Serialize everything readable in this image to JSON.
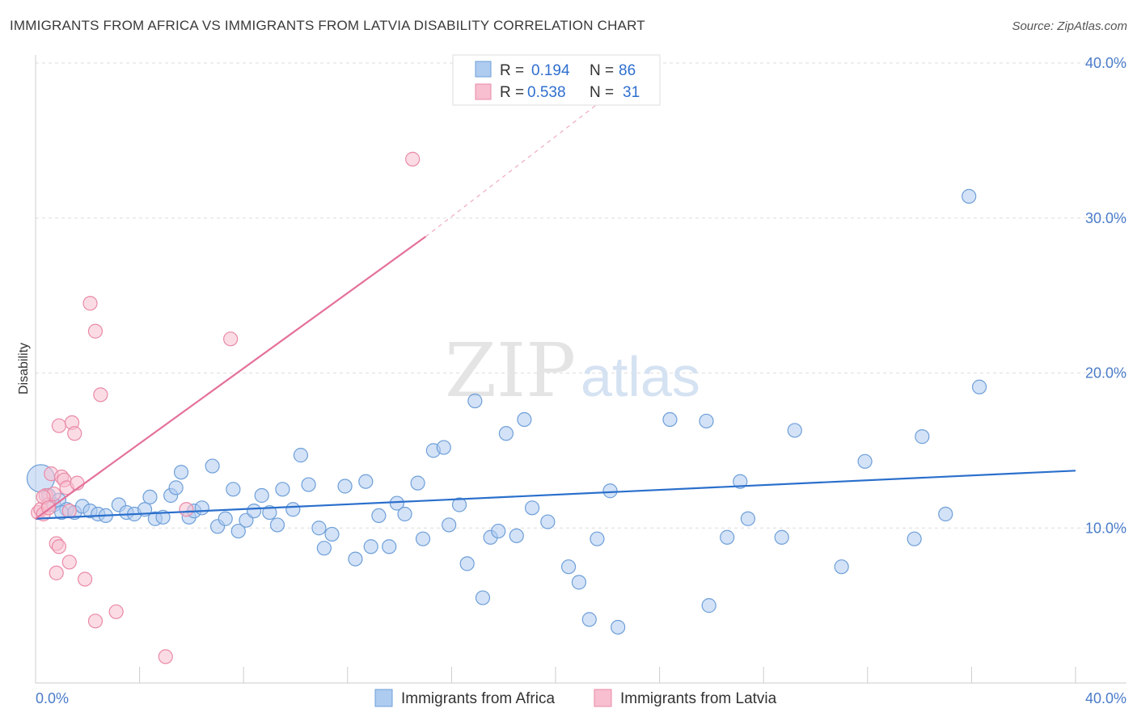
{
  "title": "IMMIGRANTS FROM AFRICA VS IMMIGRANTS FROM LATVIA DISABILITY CORRELATION CHART",
  "source": "Source: ZipAtlas.com",
  "watermark": {
    "zip": "ZIP",
    "atlas": "atlas"
  },
  "colors": {
    "africa_fill": "#aecbf0",
    "africa_stroke": "#6e9fd8",
    "africa_line": "#2a6fcc",
    "latvia_fill": "#f7bfd0",
    "latvia_stroke": "#e98aa6",
    "latvia_line": "#e4719a",
    "grid": "#dddddd",
    "tick_label": "#4a7cc9"
  },
  "legend_top": {
    "rows": [
      {
        "r_label": "R =",
        "r_value": "0.194",
        "n_label": "N =",
        "n_value": "86"
      },
      {
        "r_label": "R =",
        "r_value": "0.538",
        "n_label": "N =",
        "n_value": "31"
      }
    ]
  },
  "legend_bottom": {
    "items": [
      {
        "label": "Immigrants from Africa"
      },
      {
        "label": "Immigrants from Latvia"
      }
    ]
  },
  "chart_data": {
    "type": "scatter",
    "title": "IMMIGRANTS FROM AFRICA VS IMMIGRANTS FROM LATVIA DISABILITY CORRELATION CHART",
    "xlabel": "",
    "ylabel": "Disability",
    "xlim": [
      0,
      40
    ],
    "ylim": [
      0,
      40
    ],
    "x_tick_labels": [
      "0.0%",
      "40.0%"
    ],
    "y_ticks": [
      10,
      20,
      30,
      40
    ],
    "y_tick_labels": [
      "10.0%",
      "20.0%",
      "30.0%",
      "40.0%"
    ],
    "series": [
      {
        "name": "Immigrants from Africa",
        "R": 0.194,
        "N": 86,
        "trend": {
          "x0": 0,
          "y0": 10.6,
          "x1": 40,
          "y1": 13.7
        },
        "points": [
          {
            "x": 0.2,
            "y": 13.2,
            "big": true
          },
          {
            "x": 0.5,
            "y": 12.1
          },
          {
            "x": 0.7,
            "y": 11.5
          },
          {
            "x": 0.9,
            "y": 11.8
          },
          {
            "x": 1.2,
            "y": 11.2
          },
          {
            "x": 1.5,
            "y": 11.0
          },
          {
            "x": 1.8,
            "y": 11.4
          },
          {
            "x": 2.1,
            "y": 11.1
          },
          {
            "x": 2.4,
            "y": 10.9
          },
          {
            "x": 2.7,
            "y": 10.8
          },
          {
            "x": 3.2,
            "y": 11.5
          },
          {
            "x": 3.5,
            "y": 11.0
          },
          {
            "x": 3.8,
            "y": 10.9
          },
          {
            "x": 4.2,
            "y": 11.2
          },
          {
            "x": 4.4,
            "y": 12.0
          },
          {
            "x": 4.6,
            "y": 10.6
          },
          {
            "x": 4.9,
            "y": 10.7
          },
          {
            "x": 5.2,
            "y": 12.1
          },
          {
            "x": 5.4,
            "y": 12.6
          },
          {
            "x": 5.6,
            "y": 13.6
          },
          {
            "x": 5.9,
            "y": 10.7
          },
          {
            "x": 6.1,
            "y": 11.1
          },
          {
            "x": 6.4,
            "y": 11.3
          },
          {
            "x": 6.8,
            "y": 14.0
          },
          {
            "x": 7.0,
            "y": 10.1
          },
          {
            "x": 7.3,
            "y": 10.6
          },
          {
            "x": 7.6,
            "y": 12.5
          },
          {
            "x": 7.8,
            "y": 9.8
          },
          {
            "x": 8.1,
            "y": 10.5
          },
          {
            "x": 8.4,
            "y": 11.1
          },
          {
            "x": 8.7,
            "y": 12.1
          },
          {
            "x": 9.0,
            "y": 11.0
          },
          {
            "x": 9.3,
            "y": 10.2
          },
          {
            "x": 9.5,
            "y": 12.5
          },
          {
            "x": 9.9,
            "y": 11.2
          },
          {
            "x": 10.2,
            "y": 14.7
          },
          {
            "x": 10.5,
            "y": 12.8
          },
          {
            "x": 10.9,
            "y": 10.0
          },
          {
            "x": 11.1,
            "y": 8.7
          },
          {
            "x": 11.4,
            "y": 9.6
          },
          {
            "x": 11.9,
            "y": 12.7
          },
          {
            "x": 12.3,
            "y": 8.0
          },
          {
            "x": 12.7,
            "y": 13.0
          },
          {
            "x": 12.9,
            "y": 8.8
          },
          {
            "x": 13.2,
            "y": 10.8
          },
          {
            "x": 13.6,
            "y": 8.8
          },
          {
            "x": 13.9,
            "y": 11.6
          },
          {
            "x": 14.2,
            "y": 10.9
          },
          {
            "x": 14.7,
            "y": 12.9
          },
          {
            "x": 14.9,
            "y": 9.3
          },
          {
            "x": 15.3,
            "y": 15.0
          },
          {
            "x": 15.7,
            "y": 15.2
          },
          {
            "x": 15.9,
            "y": 10.2
          },
          {
            "x": 16.3,
            "y": 11.5
          },
          {
            "x": 16.6,
            "y": 7.7
          },
          {
            "x": 16.9,
            "y": 18.2
          },
          {
            "x": 17.2,
            "y": 5.5
          },
          {
            "x": 17.5,
            "y": 9.4
          },
          {
            "x": 17.8,
            "y": 9.8
          },
          {
            "x": 18.1,
            "y": 16.1
          },
          {
            "x": 18.5,
            "y": 9.5
          },
          {
            "x": 18.8,
            "y": 17.0
          },
          {
            "x": 19.1,
            "y": 11.3
          },
          {
            "x": 19.7,
            "y": 10.4
          },
          {
            "x": 20.5,
            "y": 7.5
          },
          {
            "x": 20.9,
            "y": 6.5
          },
          {
            "x": 21.3,
            "y": 4.1
          },
          {
            "x": 21.6,
            "y": 9.3
          },
          {
            "x": 22.1,
            "y": 12.4
          },
          {
            "x": 22.4,
            "y": 3.6
          },
          {
            "x": 24.4,
            "y": 17.0
          },
          {
            "x": 25.8,
            "y": 16.9
          },
          {
            "x": 25.9,
            "y": 5.0
          },
          {
            "x": 26.6,
            "y": 9.4
          },
          {
            "x": 27.1,
            "y": 13.0
          },
          {
            "x": 27.4,
            "y": 10.6
          },
          {
            "x": 28.7,
            "y": 9.4
          },
          {
            "x": 29.2,
            "y": 16.3
          },
          {
            "x": 31.0,
            "y": 7.5
          },
          {
            "x": 31.9,
            "y": 14.3
          },
          {
            "x": 33.8,
            "y": 9.3
          },
          {
            "x": 34.1,
            "y": 15.9
          },
          {
            "x": 35.0,
            "y": 10.9
          },
          {
            "x": 35.9,
            "y": 31.4
          },
          {
            "x": 36.3,
            "y": 19.1
          },
          {
            "x": 1.0,
            "y": 11.0
          }
        ]
      },
      {
        "name": "Immigrants from Latvia",
        "R": 0.538,
        "N": 31,
        "trend": {
          "x0": 0,
          "y0": 10.6,
          "x1": 15.0,
          "y1": 28.8
        },
        "trend_dashed_to": {
          "x": 22.5,
          "y": 38.5
        },
        "points": [
          {
            "x": 0.1,
            "y": 11.0
          },
          {
            "x": 0.2,
            "y": 11.2
          },
          {
            "x": 0.3,
            "y": 10.9
          },
          {
            "x": 0.4,
            "y": 12.1
          },
          {
            "x": 0.5,
            "y": 11.5
          },
          {
            "x": 0.6,
            "y": 13.5
          },
          {
            "x": 0.7,
            "y": 12.2
          },
          {
            "x": 0.8,
            "y": 9.0
          },
          {
            "x": 0.8,
            "y": 7.1
          },
          {
            "x": 0.9,
            "y": 8.8
          },
          {
            "x": 0.9,
            "y": 16.6
          },
          {
            "x": 1.0,
            "y": 13.3
          },
          {
            "x": 1.1,
            "y": 13.1
          },
          {
            "x": 1.2,
            "y": 12.6
          },
          {
            "x": 1.3,
            "y": 11.1
          },
          {
            "x": 1.3,
            "y": 7.8
          },
          {
            "x": 1.4,
            "y": 16.8
          },
          {
            "x": 1.5,
            "y": 16.1
          },
          {
            "x": 1.6,
            "y": 12.9
          },
          {
            "x": 1.9,
            "y": 6.7
          },
          {
            "x": 2.1,
            "y": 24.5
          },
          {
            "x": 2.3,
            "y": 4.0
          },
          {
            "x": 2.3,
            "y": 22.7
          },
          {
            "x": 2.5,
            "y": 18.6
          },
          {
            "x": 3.1,
            "y": 4.6
          },
          {
            "x": 5.0,
            "y": 1.7
          },
          {
            "x": 5.8,
            "y": 11.2
          },
          {
            "x": 7.5,
            "y": 22.2
          },
          {
            "x": 14.5,
            "y": 33.8
          },
          {
            "x": 0.3,
            "y": 12.0
          },
          {
            "x": 0.5,
            "y": 11.3
          }
        ]
      }
    ]
  }
}
